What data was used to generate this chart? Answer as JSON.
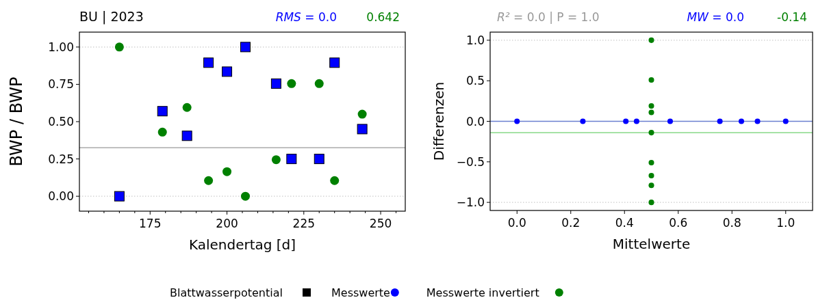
{
  "chart_data": [
    {
      "type": "scatter",
      "title": "BU | 2023",
      "xlabel": "Kalendertag [d]",
      "ylabel": "BWP / BWP",
      "legend": "bottom",
      "legend_title": "Blattwasserpotential",
      "annotations": [
        "RMS = 0.0",
        "0.642"
      ],
      "xlim": [
        152,
        258
      ],
      "xticks": [
        {
          "value": 155,
          "label": null
        },
        {
          "value": 160,
          "label": null
        },
        {
          "value": 165,
          "label": null
        },
        {
          "value": 170,
          "label": null
        },
        175,
        {
          "value": 180,
          "label": null
        },
        {
          "value": 185,
          "label": null
        },
        {
          "value": 190,
          "label": null
        },
        {
          "value": 195,
          "label": null
        },
        200,
        {
          "value": 205,
          "label": null
        },
        {
          "value": 210,
          "label": null
        },
        {
          "value": 215,
          "label": null
        },
        {
          "value": 220,
          "label": null
        },
        225,
        {
          "value": 230,
          "label": null
        },
        {
          "value": 235,
          "label": null
        },
        {
          "value": 240,
          "label": null
        },
        {
          "value": 245,
          "label": null
        },
        250,
        {
          "value": 255,
          "label": null
        }
      ],
      "ylim": [
        -0.1,
        1.1
      ],
      "yticks": [
        {
          "value": 0,
          "label": "0.00"
        },
        {
          "value": 0.25,
          "label": "0.25"
        },
        {
          "value": 0.5,
          "label": "0.50"
        },
        {
          "value": 0.75,
          "label": "0.75"
        },
        {
          "value": 1,
          "label": "1.00"
        }
      ],
      "ref_lines": [
        {
          "axis": "y",
          "value": 0.325,
          "color": "#999999"
        },
        {
          "axis": "y",
          "value": 0,
          "color": "#cccccc",
          "line_style": "dotted"
        },
        {
          "axis": "y",
          "value": 1,
          "color": "#cccccc",
          "line_style": "dotted"
        }
      ],
      "series": [
        {
          "name": "Messwerte",
          "color": "#0000ff",
          "marker": "square",
          "x": [
            165,
            179,
            187,
            194,
            200,
            206,
            216,
            221,
            230,
            235,
            244
          ],
          "values": [
            0,
            0.57,
            0.405,
            0.895,
            0.835,
            1.0,
            0.755,
            0.25,
            0.25,
            0.895,
            0.45
          ]
        },
        {
          "name": "Messwerte invertiert",
          "color": "#008000",
          "marker": "circle",
          "x": [
            165,
            179,
            187,
            194,
            200,
            206,
            216,
            221,
            230,
            235,
            244
          ],
          "values": [
            1.0,
            0.43,
            0.595,
            0.105,
            0.165,
            0,
            0.245,
            0.755,
            0.755,
            0.105,
            0.55
          ]
        }
      ]
    },
    {
      "type": "scatter",
      "xlabel": "Mittelwerte",
      "ylabel": "Differenzen",
      "annotations": [
        "R² = 0.0 | P = 1.0",
        "MW = 0.0",
        "-0.14"
      ],
      "xlim": [
        -0.1,
        1.1
      ],
      "xticks": [
        {
          "value": 0,
          "label": "0.0"
        },
        {
          "value": 0.2,
          "label": "0.2"
        },
        {
          "value": 0.4,
          "label": "0.4"
        },
        {
          "value": 0.6,
          "label": "0.6"
        },
        {
          "value": 0.8,
          "label": "0.8"
        },
        {
          "value": 1,
          "label": "1.0"
        }
      ],
      "ylim": [
        -1.1,
        1.1
      ],
      "yticks": [
        {
          "value": -1,
          "label": "−1.0"
        },
        {
          "value": -0.5,
          "label": "−0.5"
        },
        {
          "value": 0,
          "label": "0.0"
        },
        {
          "value": 0.5,
          "label": "0.5"
        },
        {
          "value": 1,
          "label": "1.0"
        }
      ],
      "ref_lines": [
        {
          "axis": "y",
          "value": 0,
          "color": "#6a7fd0"
        },
        {
          "axis": "y",
          "value": -0.14,
          "color": "#70d070"
        },
        {
          "axis": "y",
          "value": 1,
          "color": "#cccccc",
          "line_style": "dotted"
        },
        {
          "axis": "y",
          "value": -1,
          "color": "#cccccc",
          "line_style": "dotted"
        }
      ],
      "series": [
        {
          "color": "#0000ff",
          "marker": "circle",
          "x": [
            0,
            0.245,
            0.405,
            0.445,
            0.57,
            0.755,
            0.835,
            0.895,
            1.0
          ],
          "values": [
            0,
            0,
            0,
            0,
            0,
            0,
            0,
            0,
            0
          ]
        },
        {
          "color": "#008000",
          "marker": "circle",
          "x": [
            0.5,
            0.5,
            0.5,
            0.5,
            0.5,
            0.5,
            0.5,
            0.5,
            0.5
          ],
          "values": [
            1.0,
            0.51,
            0.19,
            0.11,
            -0.14,
            -0.51,
            -0.67,
            -0.79,
            -1.0
          ]
        }
      ]
    }
  ]
}
